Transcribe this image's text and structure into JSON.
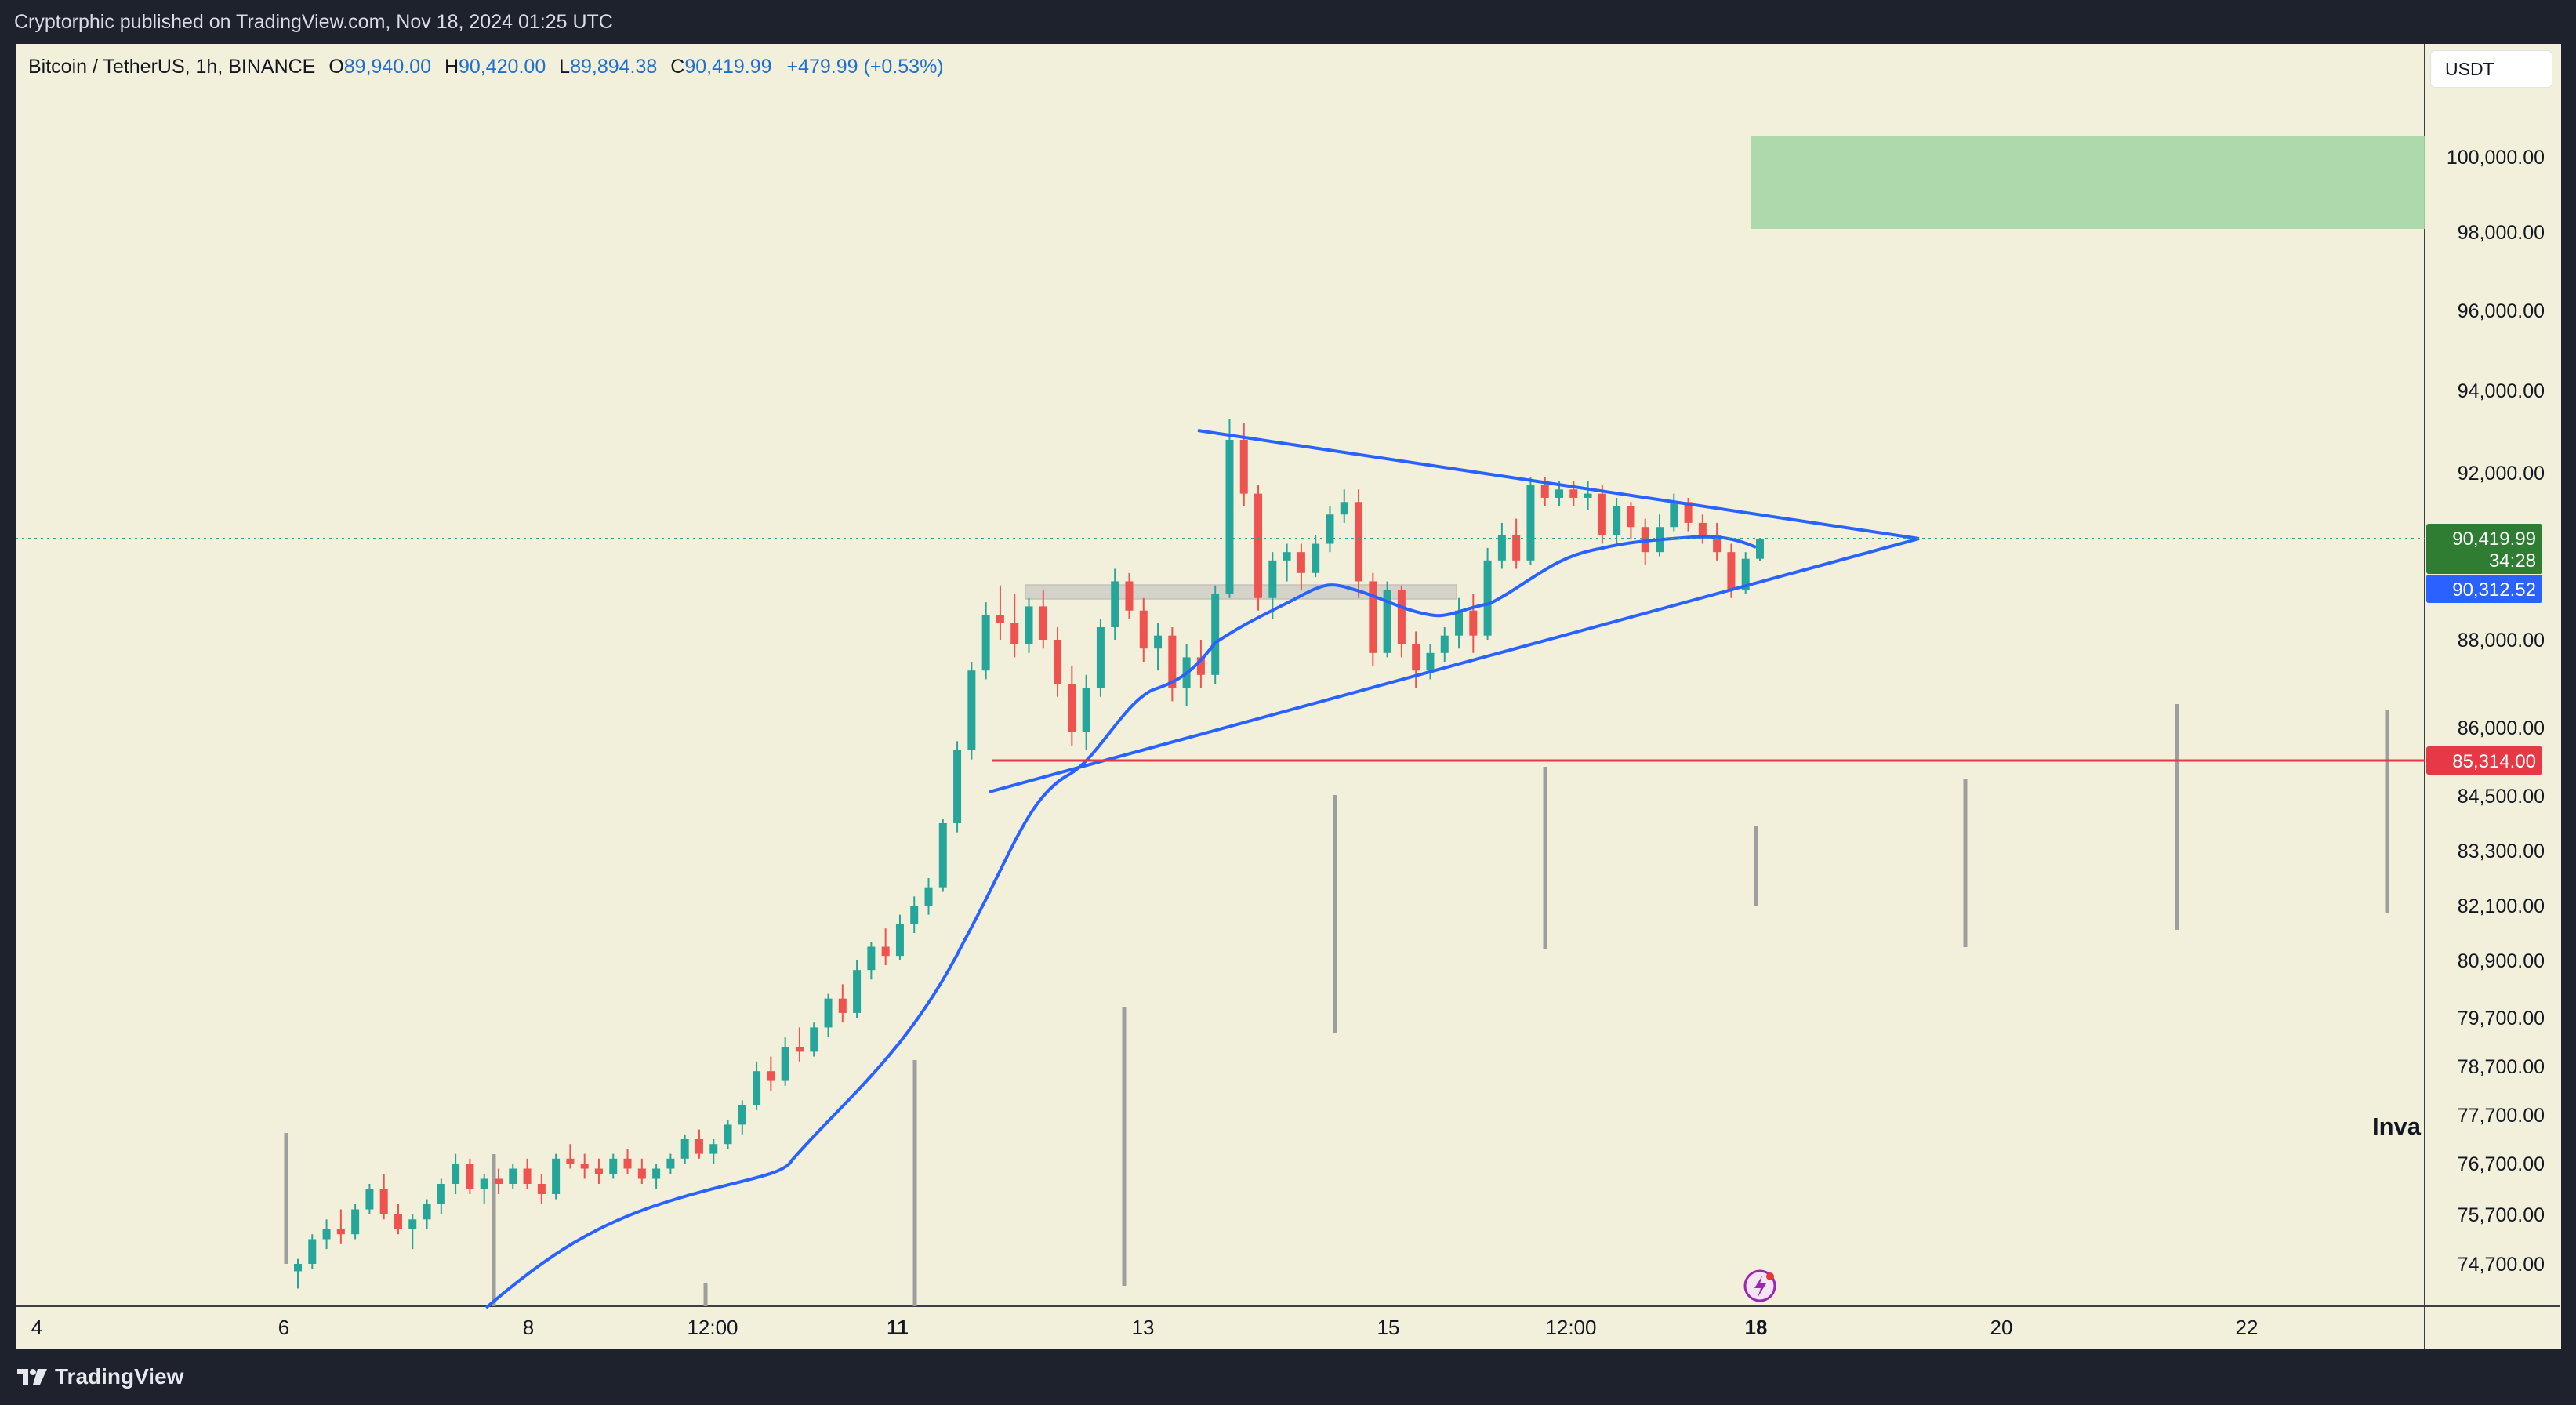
{
  "header": {
    "published_by": "Cryptorphic published on TradingView.com, Nov 18, 2024 01:25 UTC"
  },
  "legend": {
    "symbol": "Bitcoin / TetherUS, 1h, BINANCE",
    "open_label": "O",
    "open": "89,940.00",
    "high_label": "H",
    "high": "90,420.00",
    "low_label": "L",
    "low": "89,894.38",
    "close_label": "C",
    "close": "90,419.99",
    "change": "+479.99 (+0.53%)"
  },
  "currency": "USDT",
  "footer": {
    "brand": "TradingView"
  },
  "colors": {
    "background": "#f2f0da",
    "up": "#26a69a",
    "down": "#ef5350",
    "trendline": "#2962ff",
    "target_zone": "#a5d6a7",
    "support_line": "#e53945",
    "current_price": "#2e7d32"
  },
  "chart_data": {
    "type": "candlestick",
    "symbol": "BTCUSDT",
    "timeframe": "1h",
    "y_scale": "non-linear (as printed)",
    "y_ticks": [
      100000,
      98000,
      96000,
      94000,
      92000,
      88000,
      86000,
      84500,
      83300,
      82100,
      80900,
      79700,
      78700,
      77700,
      76700,
      75700,
      74700
    ],
    "y_tick_labels": [
      "100,000.00",
      "98,000.00",
      "96,000.00",
      "94,000.00",
      "92,000.00",
      "88,000.00",
      "86,000.00",
      "84,500.00",
      "83,300.00",
      "82,100.00",
      "80,900.00",
      "79,700.00",
      "78,700.00",
      "77,700.00",
      "76,700.00",
      "75,700.00",
      "74,700.00"
    ],
    "x_tick_labels": [
      "4",
      "6",
      "8",
      "12:00",
      "11",
      "13",
      "15",
      "12:00",
      "18",
      "20",
      "22"
    ],
    "x_tick_bold": [
      false,
      false,
      false,
      false,
      true,
      false,
      false,
      false,
      true,
      false,
      false
    ],
    "x_tick_dates": [
      "Nov 4",
      "Nov 6",
      "Nov 8",
      "Nov 9 12:00",
      "Nov 11",
      "Nov 13",
      "Nov 15",
      "Nov 16 12:00",
      "Nov 18",
      "Nov 20",
      "Nov 22"
    ],
    "price_labels": [
      {
        "value": "90,419.99",
        "sub": "34:28",
        "color": "#2e7d32"
      },
      {
        "value": "90,312.52",
        "sub": "",
        "color": "#2962ff"
      },
      {
        "value": "85,314.00",
        "sub": "",
        "color": "#e53945"
      }
    ],
    "last_price": 90419.99,
    "ema_value": 90312.52,
    "support_level": 85314.0,
    "target_zone": {
      "low": 98100,
      "high": 100500
    },
    "triangle": {
      "upper": [
        {
          "date": "Nov 13 10:00",
          "price": 93000
        },
        {
          "date": "Nov 19 05:00",
          "price": 90400
        }
      ],
      "lower": [
        {
          "date": "Nov 11 22:00",
          "price": 84800
        },
        {
          "date": "Nov 19 05:00",
          "price": 90400
        }
      ]
    },
    "consolidation_box": {
      "low": 89200,
      "high": 89600
    },
    "annotation_text": "Inva",
    "events": "lightning icon near Nov 18",
    "candles_ohlc": [
      [
        74550,
        74800,
        74200,
        74700
      ],
      [
        74700,
        75300,
        74600,
        75200
      ],
      [
        75200,
        75600,
        75000,
        75400
      ],
      [
        75400,
        75800,
        75100,
        75300
      ],
      [
        75300,
        75900,
        75200,
        75800
      ],
      [
        75800,
        76300,
        75700,
        76200
      ],
      [
        76200,
        76500,
        75600,
        75700
      ],
      [
        75700,
        75900,
        75300,
        75400
      ],
      [
        75400,
        75700,
        75000,
        75600
      ],
      [
        75600,
        76000,
        75400,
        75900
      ],
      [
        75900,
        76400,
        75700,
        76300
      ],
      [
        76300,
        76900,
        76100,
        76700
      ],
      [
        76700,
        76800,
        76100,
        76200
      ],
      [
        76200,
        76500,
        75900,
        76400
      ],
      [
        76400,
        76600,
        76100,
        76300
      ],
      [
        76300,
        76700,
        76200,
        76600
      ],
      [
        76600,
        76800,
        76200,
        76300
      ],
      [
        76300,
        76500,
        75900,
        76100
      ],
      [
        76100,
        76900,
        76000,
        76800
      ],
      [
        76800,
        77100,
        76600,
        76700
      ],
      [
        76700,
        76900,
        76400,
        76600
      ],
      [
        76600,
        76800,
        76300,
        76500
      ],
      [
        76500,
        76900,
        76400,
        76800
      ],
      [
        76800,
        77000,
        76500,
        76600
      ],
      [
        76600,
        76800,
        76300,
        76400
      ],
      [
        76400,
        76700,
        76200,
        76600
      ],
      [
        76600,
        76900,
        76500,
        76800
      ],
      [
        76800,
        77300,
        76700,
        77200
      ],
      [
        77200,
        77400,
        76800,
        76900
      ],
      [
        76900,
        77200,
        76700,
        77100
      ],
      [
        77100,
        77600,
        77000,
        77500
      ],
      [
        77500,
        78000,
        77300,
        77900
      ],
      [
        77900,
        78800,
        77800,
        78600
      ],
      [
        78600,
        78900,
        78200,
        78400
      ],
      [
        78400,
        79300,
        78300,
        79100
      ],
      [
        79100,
        79500,
        78800,
        79000
      ],
      [
        79000,
        79600,
        78900,
        79500
      ],
      [
        79500,
        80200,
        79300,
        80100
      ],
      [
        80100,
        80400,
        79600,
        79800
      ],
      [
        79800,
        80900,
        79700,
        80700
      ],
      [
        80700,
        81300,
        80500,
        81200
      ],
      [
        81200,
        81600,
        80800,
        81000
      ],
      [
        81000,
        81900,
        80900,
        81700
      ],
      [
        81700,
        82300,
        81500,
        82100
      ],
      [
        82100,
        82700,
        81900,
        82500
      ],
      [
        82500,
        84000,
        82400,
        83900
      ],
      [
        83900,
        85700,
        83700,
        85500
      ],
      [
        85500,
        87500,
        85300,
        87300
      ],
      [
        87300,
        88900,
        87100,
        88600
      ],
      [
        88600,
        89300,
        88000,
        88400
      ],
      [
        88400,
        89100,
        87600,
        87900
      ],
      [
        87900,
        89000,
        87700,
        88800
      ],
      [
        88800,
        89200,
        87800,
        88000
      ],
      [
        88000,
        88300,
        86700,
        87000
      ],
      [
        87000,
        87400,
        85600,
        85900
      ],
      [
        85900,
        87200,
        85500,
        86900
      ],
      [
        86900,
        88500,
        86700,
        88300
      ],
      [
        88300,
        89700,
        88000,
        89400
      ],
      [
        89400,
        89600,
        88500,
        88700
      ],
      [
        88700,
        89000,
        87500,
        87800
      ],
      [
        87800,
        88400,
        87300,
        88100
      ],
      [
        88100,
        88300,
        86600,
        86900
      ],
      [
        86900,
        87900,
        86500,
        87600
      ],
      [
        87600,
        88000,
        86900,
        87200
      ],
      [
        87200,
        89300,
        87000,
        89100
      ],
      [
        89100,
        93300,
        89000,
        92800
      ],
      [
        92800,
        93200,
        91200,
        91500
      ],
      [
        91500,
        91700,
        88700,
        89000
      ],
      [
        89000,
        90100,
        88500,
        89900
      ],
      [
        89900,
        90300,
        89400,
        90100
      ],
      [
        90100,
        90300,
        89200,
        89600
      ],
      [
        89600,
        90500,
        89500,
        90300
      ],
      [
        90300,
        91200,
        90100,
        91000
      ],
      [
        91000,
        91600,
        90800,
        91300
      ],
      [
        91300,
        91600,
        89000,
        89400
      ],
      [
        89400,
        89600,
        87400,
        87700
      ],
      [
        87700,
        89400,
        87600,
        89200
      ],
      [
        89200,
        89300,
        87600,
        87900
      ],
      [
        87900,
        88200,
        86900,
        87300
      ],
      [
        87300,
        87900,
        87100,
        87700
      ],
      [
        87700,
        88300,
        87500,
        88100
      ],
      [
        88100,
        89000,
        87800,
        88700
      ],
      [
        88700,
        89100,
        87700,
        88100
      ],
      [
        88100,
        90200,
        88000,
        89900
      ],
      [
        89900,
        90800,
        89700,
        90500
      ],
      [
        90500,
        90900,
        89700,
        89900
      ],
      [
        89900,
        91900,
        89800,
        91700
      ],
      [
        91700,
        91900,
        91200,
        91400
      ],
      [
        91400,
        91800,
        91200,
        91600
      ],
      [
        91600,
        91800,
        91200,
        91400
      ],
      [
        91400,
        91800,
        91100,
        91500
      ],
      [
        91500,
        91700,
        90300,
        90500
      ],
      [
        90500,
        91400,
        90300,
        91200
      ],
      [
        91200,
        91300,
        90400,
        90700
      ],
      [
        90700,
        90900,
        89800,
        90100
      ],
      [
        90100,
        91000,
        90000,
        90700
      ],
      [
        90700,
        91500,
        90600,
        91300
      ],
      [
        91300,
        91400,
        90600,
        90800
      ],
      [
        90800,
        91000,
        90300,
        90500
      ],
      [
        90500,
        90800,
        89900,
        90100
      ],
      [
        90100,
        90300,
        89000,
        89200
      ],
      [
        89200,
        90100,
        89100,
        89940
      ],
      [
        89940,
        90420,
        89894,
        90419.99
      ]
    ]
  }
}
